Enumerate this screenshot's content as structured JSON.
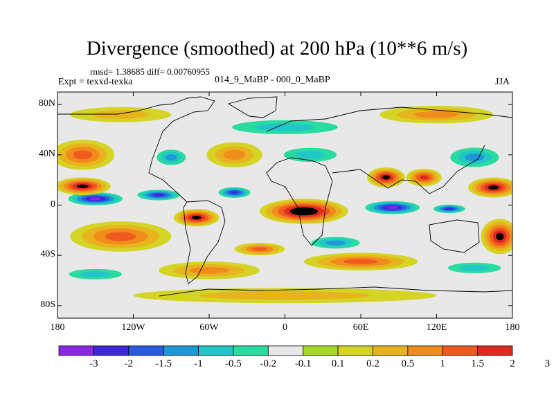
{
  "chart_data": {
    "type": "heatmap",
    "title": "Divergence (smoothed) at 200 hPa (10**6 m/s)",
    "stats_text": "rmsd= 1.38685 diff= 0.00760955",
    "left_label": "Expt = texxd-texka",
    "center_label": "014_9_MaBP - 000_0_MaBP",
    "right_label": "JJA",
    "x_range": [
      -180,
      180
    ],
    "y_range": [
      -90,
      90
    ],
    "x_ticks": [
      {
        "value": -180,
        "label": "180"
      },
      {
        "value": -120,
        "label": "120W"
      },
      {
        "value": -60,
        "label": "60W"
      },
      {
        "value": 0,
        "label": "0"
      },
      {
        "value": 60,
        "label": "60E"
      },
      {
        "value": 120,
        "label": "120E"
      },
      {
        "value": 180,
        "label": "180"
      }
    ],
    "y_ticks": [
      {
        "value": 80,
        "label": "80N"
      },
      {
        "value": 40,
        "label": "40N"
      },
      {
        "value": 0,
        "label": "0"
      },
      {
        "value": -40,
        "label": "40S"
      },
      {
        "value": -80,
        "label": "80S"
      }
    ],
    "colorbar": {
      "colors": [
        "#8a28e6",
        "#3c28d8",
        "#2a5ae0",
        "#1e96d8",
        "#22c6c6",
        "#28dca0",
        "#e8e8e8",
        "#a8d828",
        "#d4d424",
        "#e8b41e",
        "#f08c1c",
        "#f05a1e",
        "#e02a1e"
      ],
      "labels": [
        "-3",
        "-2",
        "-1.5",
        "-1",
        "-0.5",
        "-0.2",
        "-0.1",
        "0.1",
        "0.2",
        "0.5",
        "1",
        "1.5",
        "2",
        "3"
      ]
    },
    "features": [
      {
        "lon": -150,
        "lat": 5,
        "rx": 25,
        "ry": 6,
        "value": -3.2
      },
      {
        "lon": -100,
        "lat": 8,
        "rx": 20,
        "ry": 5,
        "value": -2.6
      },
      {
        "lon": -40,
        "lat": 10,
        "rx": 15,
        "ry": 5,
        "value": -2.0
      },
      {
        "lon": 85,
        "lat": -2,
        "rx": 25,
        "ry": 6,
        "value": -3.2
      },
      {
        "lon": 130,
        "lat": -3,
        "rx": 15,
        "ry": 4,
        "value": -2.4
      },
      {
        "lon": -160,
        "lat": 15,
        "rx": 22,
        "ry": 7,
        "value": 2.6
      },
      {
        "lon": 165,
        "lat": 14,
        "rx": 20,
        "ry": 8,
        "value": 2.4
      },
      {
        "lon": 15,
        "lat": -5,
        "rx": 35,
        "ry": 10,
        "value": 3.2
      },
      {
        "lon": -70,
        "lat": -10,
        "rx": 18,
        "ry": 7,
        "value": 2.2
      },
      {
        "lon": 80,
        "lat": 22,
        "rx": 15,
        "ry": 8,
        "value": 2.8
      },
      {
        "lon": 110,
        "lat": 22,
        "rx": 14,
        "ry": 7,
        "value": 1.8
      },
      {
        "lon": 170,
        "lat": -25,
        "rx": 15,
        "ry": 14,
        "value": 2.4
      },
      {
        "lon": -130,
        "lat": -25,
        "rx": 40,
        "ry": 12,
        "value": 1.3
      },
      {
        "lon": -160,
        "lat": 40,
        "rx": 25,
        "ry": 12,
        "value": 1.2
      },
      {
        "lon": -90,
        "lat": 38,
        "rx": 15,
        "ry": 8,
        "value": -1.2
      },
      {
        "lon": -40,
        "lat": 40,
        "rx": 22,
        "ry": 10,
        "value": 0.8
      },
      {
        "lon": 20,
        "lat": 40,
        "rx": 30,
        "ry": 8,
        "value": -0.9
      },
      {
        "lon": 150,
        "lat": 38,
        "rx": 25,
        "ry": 10,
        "value": -1.4
      },
      {
        "lon": 0,
        "lat": 62,
        "rx": 60,
        "ry": 8,
        "value": -0.6
      },
      {
        "lon": -130,
        "lat": 72,
        "rx": 40,
        "ry": 6,
        "value": 0.4
      },
      {
        "lon": 120,
        "lat": 72,
        "rx": 45,
        "ry": 7,
        "value": 0.6
      },
      {
        "lon": -150,
        "lat": -55,
        "rx": 30,
        "ry": 6,
        "value": -0.8
      },
      {
        "lon": -60,
        "lat": -52,
        "rx": 40,
        "ry": 7,
        "value": 0.9
      },
      {
        "lon": 60,
        "lat": -45,
        "rx": 45,
        "ry": 7,
        "value": 1.2
      },
      {
        "lon": 150,
        "lat": -50,
        "rx": 30,
        "ry": 6,
        "value": -0.8
      },
      {
        "lon": 0,
        "lat": -72,
        "rx": 120,
        "ry": 6,
        "value": 0.3
      },
      {
        "lon": 40,
        "lat": -30,
        "rx": 25,
        "ry": 6,
        "value": -1.0
      },
      {
        "lon": -20,
        "lat": -35,
        "rx": 20,
        "ry": 5,
        "value": 1.0
      }
    ]
  }
}
